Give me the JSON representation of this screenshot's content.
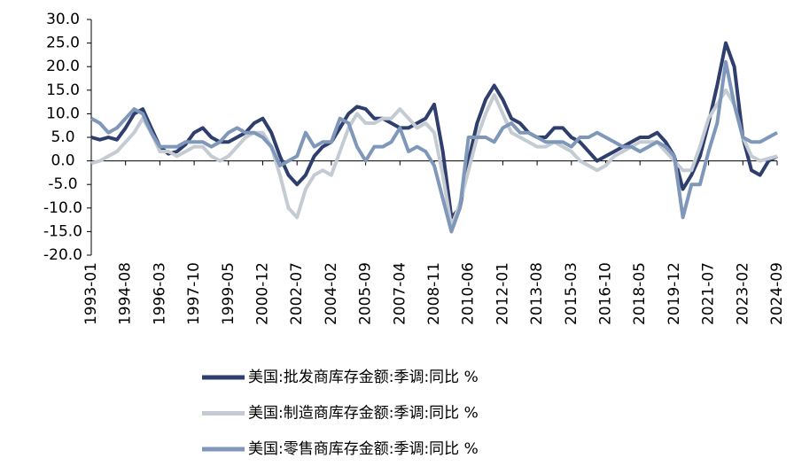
{
  "chart_data": {
    "type": "line",
    "categories": [
      "1993-01",
      null,
      null,
      null,
      "1994-08",
      null,
      null,
      null,
      "1996-03",
      null,
      null,
      null,
      "1997-10",
      null,
      null,
      null,
      "1999-05",
      null,
      null,
      null,
      "2000-12",
      null,
      null,
      null,
      "2002-07",
      null,
      null,
      null,
      "2004-02",
      null,
      null,
      null,
      "2005-09",
      null,
      null,
      null,
      "2007-04",
      null,
      null,
      null,
      "2008-11",
      null,
      null,
      null,
      "2010-06",
      null,
      null,
      null,
      "2012-01",
      null,
      null,
      null,
      "2013-08",
      null,
      null,
      null,
      "2015-03",
      null,
      null,
      null,
      "2016-10",
      null,
      null,
      null,
      "2018-05",
      null,
      null,
      null,
      "2019-12",
      null,
      null,
      null,
      "2021-07",
      null,
      null,
      null,
      "2023-02",
      null,
      null,
      null,
      "2024-09"
    ],
    "series": [
      {
        "name": "美国:批发商库存金额:季调:同比  %",
        "color": "#2e3f6e",
        "values": [
          5,
          4.5,
          5,
          4.5,
          7,
          10,
          11,
          7,
          3,
          1.5,
          2,
          3.5,
          6,
          7,
          5,
          4,
          4,
          5,
          6,
          8,
          9,
          6,
          1,
          -3,
          -5,
          -3,
          1,
          3,
          4,
          7,
          10,
          11.5,
          11,
          9,
          9,
          8,
          7,
          7,
          8,
          9,
          12,
          2,
          -12,
          -10,
          0,
          8,
          13,
          16,
          13,
          9,
          8,
          6,
          5,
          5,
          7,
          7,
          5,
          4,
          2,
          0,
          1,
          2,
          3,
          4,
          5,
          5,
          6,
          4,
          1,
          -6,
          -3,
          1,
          8,
          16,
          25,
          20,
          5,
          -2,
          -3,
          0,
          1
        ]
      },
      {
        "name": "美国:制造商库存金额:季调:同比  %",
        "color": "#c5cbd3",
        "values": [
          -0.5,
          0,
          1,
          2,
          4,
          6,
          9,
          6,
          2,
          2,
          1,
          2,
          3,
          3,
          1,
          0,
          1,
          3,
          5,
          6,
          6,
          3,
          -3,
          -10,
          -12,
          -6,
          -3,
          -2,
          -3,
          2,
          7,
          10,
          8,
          8,
          9,
          9,
          11,
          9,
          7,
          8,
          6,
          -3,
          -14,
          -9,
          -2,
          5,
          10,
          14,
          10,
          6,
          5,
          4,
          3,
          3,
          4,
          3,
          2,
          0,
          -1,
          -2,
          -1,
          1,
          2,
          3,
          4,
          4,
          4,
          2,
          0,
          -2,
          -2,
          3,
          9,
          12,
          15,
          12,
          5,
          1,
          0,
          0.5,
          1
        ]
      },
      {
        "name": "美国:零售商库存金额:季调:同比  %",
        "color": "#7f97b8",
        "values": [
          9,
          8,
          6,
          7,
          9,
          11,
          10,
          6,
          3,
          3,
          3,
          4,
          4,
          4,
          3,
          4,
          6,
          7,
          6,
          6,
          5,
          3,
          -1,
          0,
          1,
          6,
          3,
          4,
          4,
          9,
          8,
          3,
          0,
          3,
          3,
          4,
          7,
          2,
          3,
          2,
          -1,
          -8,
          -15,
          -10,
          5,
          5,
          5,
          4,
          7,
          8,
          6,
          6,
          5,
          4,
          4,
          4,
          3,
          5,
          5,
          6,
          5,
          4,
          3,
          3,
          2,
          3,
          4,
          3,
          1,
          -12,
          -5,
          -5,
          2,
          8,
          21,
          12,
          5,
          4,
          4,
          5,
          6
        ]
      }
    ],
    "ylim": [
      -20,
      30
    ],
    "yticks": [
      {
        "value": -20,
        "label": "-20.0"
      },
      {
        "value": -15,
        "label": "-15.0"
      },
      {
        "value": -10,
        "label": "-10.0"
      },
      {
        "value": -5,
        "label": "-5.0"
      },
      {
        "value": 0,
        "label": "0.0"
      },
      {
        "value": 5,
        "label": "5.0"
      },
      {
        "value": 10,
        "label": "10.0"
      },
      {
        "value": 15,
        "label": "15.0"
      },
      {
        "value": 20,
        "label": "20.0"
      },
      {
        "value": 25,
        "label": "25.0"
      },
      {
        "value": 30,
        "label": "30.0"
      }
    ],
    "legend": "bottom"
  }
}
